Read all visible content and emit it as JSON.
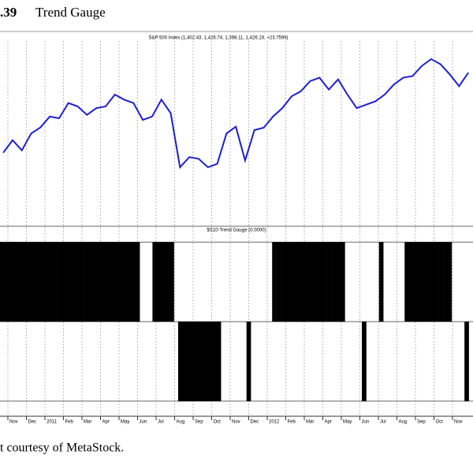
{
  "figure_number": ".39",
  "figure_title": "Trend Gauge",
  "caption": "t courtesy of MetaStock.",
  "chart_data": [
    {
      "type": "line",
      "title": "S&P 500 Index (1,402.43, 1,426.74, 1,398.11, 1,426.19, +23.7599)",
      "color": "#1f1fd0",
      "categories": [
        null,
        "Nov",
        null,
        "Dec",
        null,
        "2011",
        null,
        "Feb",
        null,
        "Mar",
        null,
        "Apr",
        null,
        "May",
        null,
        "Jun",
        null,
        "Jul",
        null,
        "Aug",
        null,
        "Sep",
        null,
        "Oct",
        null,
        "Nov",
        null,
        "Dec",
        null,
        "2012",
        null,
        "Feb",
        null,
        "Mar",
        null,
        "Apr",
        null,
        "May",
        null,
        "Jun",
        null,
        "Jul",
        null,
        "Aug",
        null,
        "Sep",
        null,
        "Oct",
        null,
        "Nov",
        null
      ],
      "values": [
        1183,
        1220,
        1190,
        1240,
        1258,
        1290,
        1285,
        1330,
        1320,
        1295,
        1315,
        1320,
        1355,
        1340,
        1330,
        1280,
        1290,
        1340,
        1300,
        1140,
        1170,
        1165,
        1140,
        1150,
        1240,
        1260,
        1160,
        1250,
        1257,
        1290,
        1315,
        1350,
        1365,
        1395,
        1405,
        1370,
        1400,
        1355,
        1315,
        1325,
        1335,
        1355,
        1385,
        1405,
        1410,
        1440,
        1460,
        1445,
        1415,
        1380,
        1420
      ],
      "ylim": [
        970,
        1530
      ]
    },
    {
      "type": "bar",
      "title": "$S10-Trend Gauge (0.0000)",
      "color": "#000000",
      "values": [
        1,
        1,
        1,
        1,
        1,
        1,
        1,
        1,
        1,
        1,
        1,
        1,
        1,
        1,
        1,
        1,
        1,
        1,
        1,
        1,
        1,
        1,
        1,
        1,
        1,
        1,
        1,
        1,
        1,
        1,
        1,
        1,
        1,
        0,
        0,
        0,
        1,
        1,
        1,
        1,
        1,
        0,
        -1,
        -1,
        -1,
        -1,
        -1,
        -1,
        -1,
        -1,
        -1,
        -1,
        0,
        0,
        0,
        0,
        0,
        0,
        -1,
        0,
        0,
        0,
        0,
        0,
        1,
        1,
        1,
        1,
        1,
        1,
        1,
        1,
        1,
        1,
        1,
        1,
        1,
        1,
        1,
        1,
        1,
        0,
        0,
        0,
        0,
        -1,
        0,
        0,
        0,
        1,
        0,
        0,
        0,
        0,
        0,
        1,
        1,
        1,
        1,
        1,
        1,
        1,
        1,
        1,
        1,
        1,
        0,
        0,
        0,
        -1,
        0
      ],
      "ylim": [
        -1.1,
        1.1
      ],
      "yticks": [
        -1,
        0,
        1
      ],
      "grid": true
    }
  ]
}
